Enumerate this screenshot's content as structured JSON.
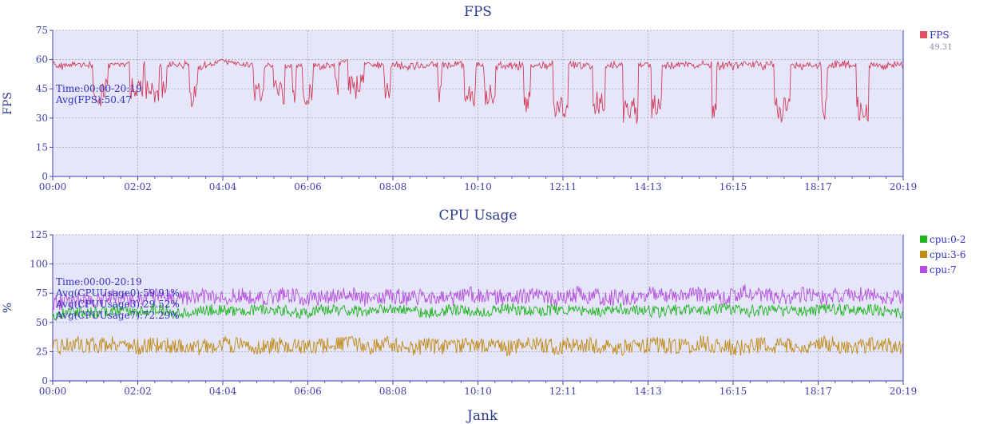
{
  "colors": {
    "plot_bg": "#e6e6fa",
    "axis": "#4040b0",
    "title": "#2b3a8c",
    "annotation": "#3030c0",
    "grid": "#9a9ab0",
    "fps": "#d23c5a",
    "cpu_0_2": "#1fb41f",
    "cpu_3_6": "#c08a14",
    "cpu_7": "#b44ee0",
    "legend_sub": "#8c8cb4"
  },
  "charts": [
    {
      "id": "fps",
      "title": "FPS",
      "ylabel": "FPS",
      "annotations": [
        "Time:00:00-20:19",
        "Avg(FPS):50.47"
      ],
      "legend": [
        {
          "label": "FPS",
          "color": "#e05060",
          "sub": "49.31"
        }
      ]
    },
    {
      "id": "cpu",
      "title": "CPU Usage",
      "ylabel": "%",
      "annotations": [
        "Time:00:00-20:19",
        "Avg(CPUUsage0):59.91%",
        "Avg(CPUUsage3):29.52%",
        "Avg(CPUUsage7):72.29%"
      ],
      "legend": [
        {
          "label": "cpu:0-2",
          "color": "#1fb41f"
        },
        {
          "label": "cpu:3-6",
          "color": "#c08a14"
        },
        {
          "label": "cpu:7",
          "color": "#b44ee0"
        }
      ]
    }
  ],
  "next_chart_title": "Jank",
  "chart_data": [
    {
      "type": "line",
      "title": "FPS",
      "xlabel": "",
      "ylabel": "FPS",
      "x_range": [
        "00:00",
        "20:19"
      ],
      "x_ticks": [
        "00:00",
        "02:02",
        "04:04",
        "06:06",
        "08:08",
        "10:10",
        "12:11",
        "14:13",
        "16:15",
        "18:17",
        "20:19"
      ],
      "ylim": [
        0,
        75
      ],
      "y_ticks": [
        0,
        15,
        30,
        45,
        60,
        75
      ],
      "grid": true,
      "legend_position": "right",
      "series": [
        {
          "name": "FPS",
          "color": "#d23c5a",
          "x": [
            "00:00",
            "00:30",
            "01:00",
            "01:30",
            "02:00",
            "02:30",
            "03:00",
            "03:30",
            "04:00",
            "04:30",
            "05:00",
            "05:30",
            "06:00",
            "06:30",
            "07:00",
            "07:30",
            "08:00",
            "08:30",
            "09:00",
            "09:30",
            "10:00",
            "10:30",
            "11:00",
            "11:30",
            "12:00",
            "12:30",
            "13:00",
            "13:30",
            "14:00",
            "14:30",
            "15:00",
            "15:30",
            "16:00",
            "16:30",
            "17:00",
            "17:30",
            "18:00",
            "18:30",
            "19:00",
            "19:30",
            "20:00",
            "20:19"
          ],
          "values": [
            52,
            58,
            55,
            57,
            58,
            56,
            57,
            55,
            59,
            58,
            56,
            57,
            54,
            56,
            59,
            58,
            55,
            54,
            57,
            55,
            53,
            55,
            52,
            51,
            47,
            50,
            49,
            48,
            46,
            49,
            48,
            47,
            49,
            50,
            47,
            48,
            46,
            49,
            47,
            48,
            45,
            47
          ]
        }
      ]
    },
    {
      "type": "line",
      "title": "CPU Usage",
      "xlabel": "",
      "ylabel": "%",
      "x_range": [
        "00:00",
        "20:19"
      ],
      "x_ticks": [
        "00:00",
        "02:02",
        "04:04",
        "06:06",
        "08:08",
        "10:10",
        "12:11",
        "14:13",
        "16:15",
        "18:17",
        "20:19"
      ],
      "ylim": [
        0,
        125
      ],
      "y_ticks": [
        0,
        25,
        50,
        75,
        100,
        125
      ],
      "grid": true,
      "legend_position": "right",
      "series": [
        {
          "name": "cpu:0-2",
          "color": "#1fb41f",
          "x": [
            "00:00",
            "00:30",
            "01:00",
            "01:30",
            "02:00",
            "02:30",
            "03:00",
            "03:30",
            "04:00",
            "04:30",
            "05:00",
            "05:30",
            "06:00",
            "06:30",
            "07:00",
            "07:30",
            "08:00",
            "08:30",
            "09:00",
            "09:30",
            "10:00",
            "10:30",
            "11:00",
            "11:30",
            "12:00",
            "12:30",
            "13:00",
            "13:30",
            "14:00",
            "14:30",
            "15:00",
            "15:30",
            "16:00",
            "16:30",
            "17:00",
            "17:30",
            "18:00",
            "18:30",
            "19:00",
            "19:30",
            "20:00",
            "20:19"
          ],
          "values": [
            56,
            60,
            58,
            61,
            59,
            62,
            58,
            60,
            61,
            59,
            62,
            60,
            58,
            61,
            60,
            59,
            62,
            60,
            58,
            61,
            59,
            60,
            62,
            59,
            61,
            60,
            58,
            62,
            60,
            59,
            61,
            60,
            62,
            59,
            61,
            60,
            59,
            62,
            60,
            61,
            59,
            58
          ]
        },
        {
          "name": "cpu:3-6",
          "color": "#c08a14",
          "x": [
            "00:00",
            "00:30",
            "01:00",
            "01:30",
            "02:00",
            "02:30",
            "03:00",
            "03:30",
            "04:00",
            "04:30",
            "05:00",
            "05:30",
            "06:00",
            "06:30",
            "07:00",
            "07:30",
            "08:00",
            "08:30",
            "09:00",
            "09:30",
            "10:00",
            "10:30",
            "11:00",
            "11:30",
            "12:00",
            "12:30",
            "13:00",
            "13:30",
            "14:00",
            "14:30",
            "15:00",
            "15:30",
            "16:00",
            "16:30",
            "17:00",
            "17:30",
            "18:00",
            "18:30",
            "19:00",
            "19:30",
            "20:00",
            "20:19"
          ],
          "values": [
            28,
            32,
            30,
            33,
            29,
            31,
            30,
            28,
            32,
            30,
            29,
            31,
            28,
            30,
            32,
            29,
            31,
            28,
            30,
            29,
            31,
            30,
            28,
            32,
            29,
            31,
            30,
            28,
            30,
            31,
            29,
            32,
            30,
            28,
            31,
            29,
            30,
            32,
            29,
            31,
            30,
            28
          ]
        },
        {
          "name": "cpu:7",
          "color": "#b44ee0",
          "x": [
            "00:00",
            "00:30",
            "01:00",
            "01:30",
            "02:00",
            "02:30",
            "03:00",
            "03:30",
            "04:00",
            "04:30",
            "05:00",
            "05:30",
            "06:00",
            "06:30",
            "07:00",
            "07:30",
            "08:00",
            "08:30",
            "09:00",
            "09:30",
            "10:00",
            "10:30",
            "11:00",
            "11:30",
            "12:00",
            "12:30",
            "13:00",
            "13:30",
            "14:00",
            "14:30",
            "15:00",
            "15:30",
            "16:00",
            "16:30",
            "17:00",
            "17:30",
            "18:00",
            "18:30",
            "19:00",
            "19:30",
            "20:00",
            "20:19"
          ],
          "values": [
            66,
            70,
            68,
            72,
            69,
            74,
            70,
            72,
            71,
            73,
            70,
            74,
            71,
            72,
            75,
            70,
            73,
            71,
            72,
            70,
            74,
            72,
            71,
            73,
            70,
            74,
            72,
            71,
            73,
            75,
            72,
            74,
            71,
            76,
            73,
            72,
            74,
            71,
            75,
            73,
            72,
            70
          ]
        }
      ]
    }
  ]
}
